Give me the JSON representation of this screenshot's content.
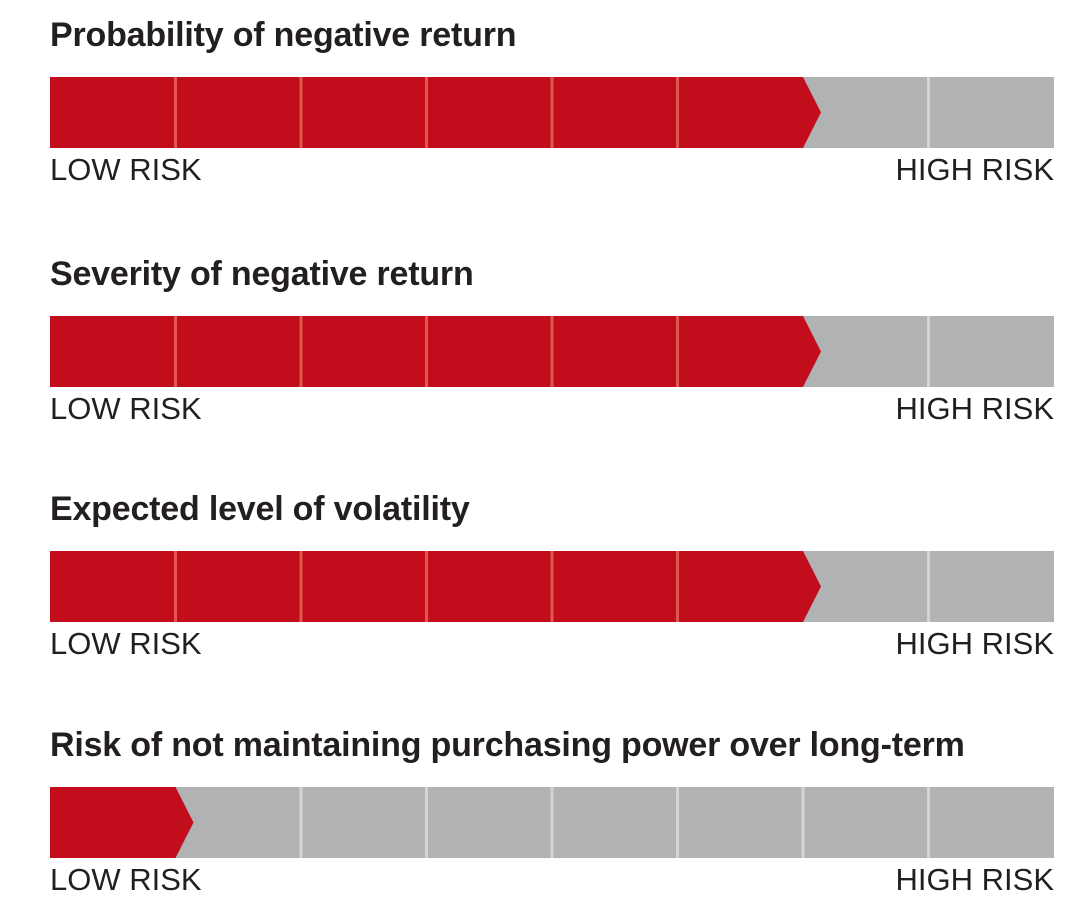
{
  "colors": {
    "filled": "#c20e1c",
    "empty": "#b1b2b4",
    "filled_divider": "#e0574b",
    "empty_divider": "#d3d4d5"
  },
  "chart_data": [
    {
      "type": "bar",
      "title": "Probability of negative return",
      "segments_total": 8,
      "value": 6,
      "scale_min_label": "LOW RISK",
      "scale_max_label": "HIGH RISK"
    },
    {
      "type": "bar",
      "title": "Severity of negative return",
      "segments_total": 8,
      "value": 6,
      "scale_min_label": "LOW RISK",
      "scale_max_label": "HIGH RISK"
    },
    {
      "type": "bar",
      "title": "Expected level of volatility",
      "segments_total": 8,
      "value": 6,
      "scale_min_label": "LOW RISK",
      "scale_max_label": "HIGH RISK"
    },
    {
      "type": "bar",
      "title": "Risk of not maintaining purchasing power over long-term",
      "segments_total": 8,
      "value": 1,
      "scale_min_label": "LOW RISK",
      "scale_max_label": "HIGH RISK"
    }
  ]
}
